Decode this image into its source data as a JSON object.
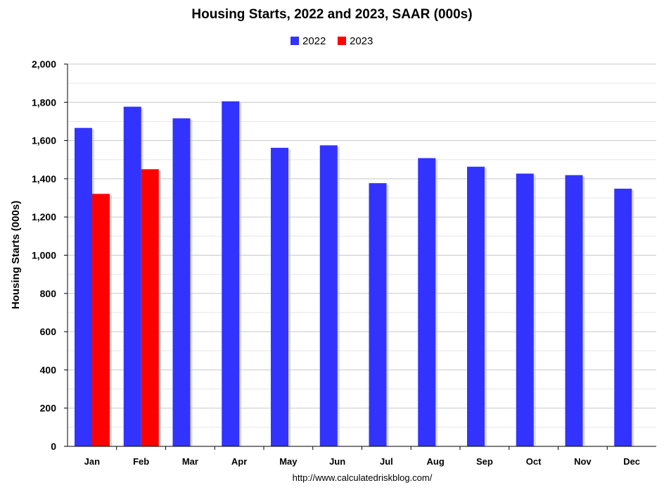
{
  "chart_data": {
    "type": "bar",
    "title": "Housing Starts,  2022 and 2023, SAAR (000s)",
    "xlabel": "",
    "ylabel": "Housing Starts (000s)",
    "ylim": [
      0,
      2000
    ],
    "yticks": [
      "0",
      "200",
      "400",
      "600",
      "800",
      "1,000",
      "1,200",
      "1,400",
      "1,600",
      "1,800",
      "2,000"
    ],
    "ytick_values": [
      0,
      200,
      400,
      600,
      800,
      1000,
      1200,
      1400,
      1600,
      1800,
      2000
    ],
    "categories": [
      "Jan",
      "Feb",
      "Mar",
      "Apr",
      "May",
      "Jun",
      "Jul",
      "Aug",
      "Sep",
      "Oct",
      "Nov",
      "Dec"
    ],
    "series": [
      {
        "name": "2022",
        "color": "#3333ff",
        "values": [
          1666,
          1777,
          1716,
          1805,
          1562,
          1575,
          1377,
          1508,
          1463,
          1427,
          1419,
          1348
        ]
      },
      {
        "name": "2023",
        "color": "#ff0000",
        "values": [
          1321,
          1450,
          null,
          null,
          null,
          null,
          null,
          null,
          null,
          null,
          null,
          null
        ]
      }
    ],
    "grid": true,
    "legend": "top-center",
    "source_note": "http://www.calculatedriskblog.com/"
  }
}
